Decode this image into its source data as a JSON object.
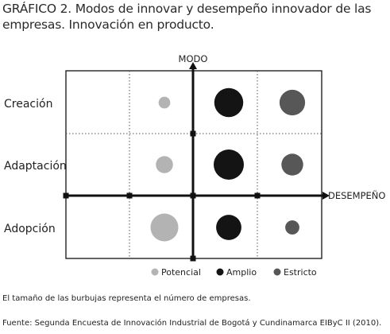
{
  "title": "GRÁFICO 2. Modos de innovar y desempeño innovador de las empresas. Innovación en producto.",
  "note": "El tamaño de las burbujas representa el número de empresas.",
  "source": "Fuente: Segunda Encuesta de Innovación Industrial de Bogotá y Cundinamarca EIByC II (2010).",
  "chart_data": {
    "type": "scatter",
    "subtype": "bubble",
    "y_axis_label": "MODO",
    "x_axis_label": "DESEMPEÑO",
    "rows": [
      "Creación",
      "Adaptación",
      "Adopción"
    ],
    "columns": [
      "Potencial",
      "Amplio",
      "Estricto"
    ],
    "legend": [
      {
        "name": "Potencial",
        "color": "#b3b3b3"
      },
      {
        "name": "Amplio",
        "color": "#141414"
      },
      {
        "name": "Estricto",
        "color": "#575757"
      }
    ],
    "legend_position": "bottom",
    "grid": true,
    "bubbles": [
      {
        "row": "Creación",
        "series": "Potencial",
        "relative_size": 0.15
      },
      {
        "row": "Creación",
        "series": "Amplio",
        "relative_size": 0.92
      },
      {
        "row": "Creación",
        "series": "Estricto",
        "relative_size": 0.72
      },
      {
        "row": "Adaptación",
        "series": "Potencial",
        "relative_size": 0.32
      },
      {
        "row": "Adaptación",
        "series": "Amplio",
        "relative_size": 1.0
      },
      {
        "row": "Adaptación",
        "series": "Estricto",
        "relative_size": 0.52
      },
      {
        "row": "Adopción",
        "series": "Potencial",
        "relative_size": 0.85
      },
      {
        "row": "Adopción",
        "series": "Amplio",
        "relative_size": 0.7
      },
      {
        "row": "Adopción",
        "series": "Estricto",
        "relative_size": 0.22
      }
    ]
  }
}
